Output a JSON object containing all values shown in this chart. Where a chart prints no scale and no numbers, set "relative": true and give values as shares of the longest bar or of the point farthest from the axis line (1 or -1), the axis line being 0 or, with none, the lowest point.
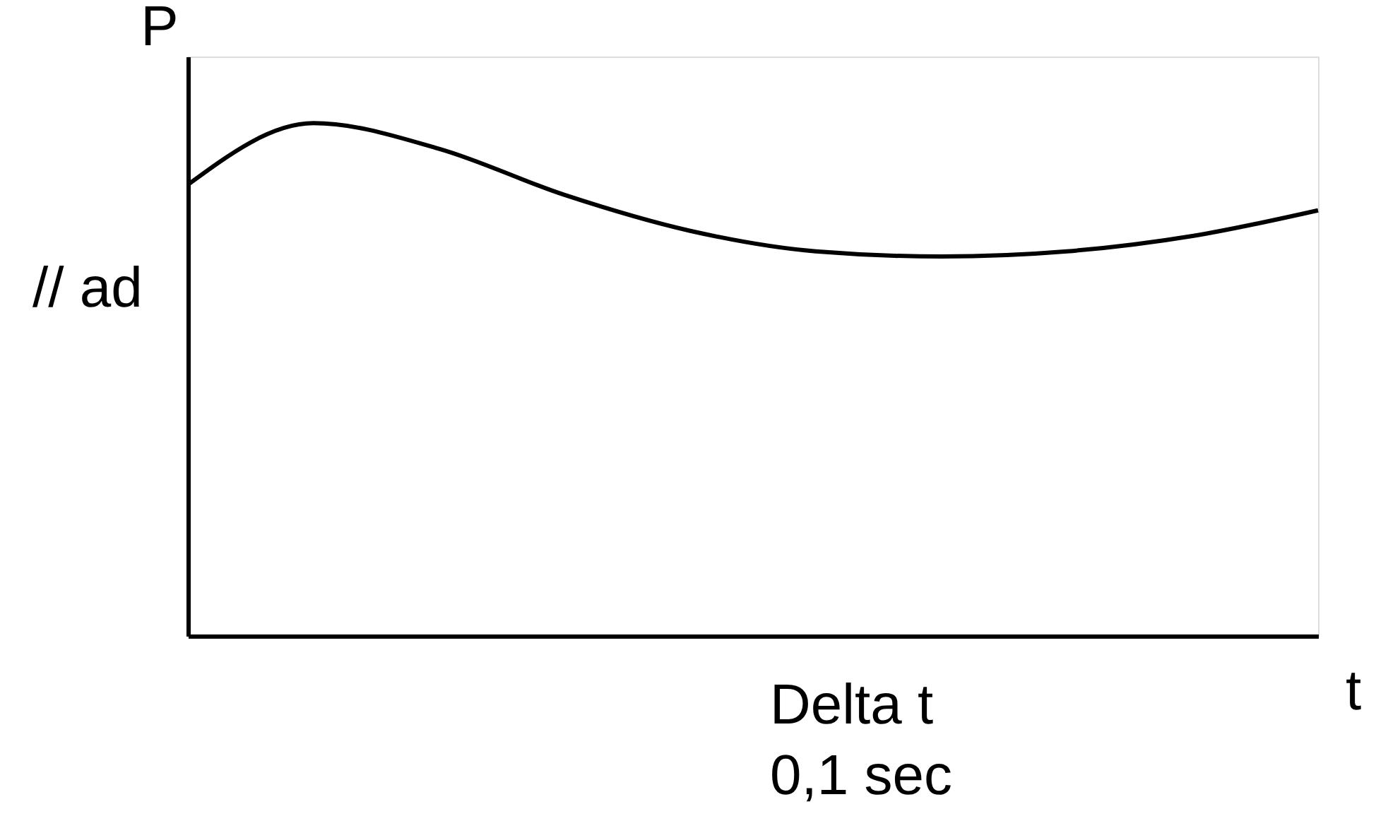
{
  "chart_data": {
    "type": "line",
    "relative": true,
    "ylabel": "P",
    "xlabel": "t",
    "categories": [
      null,
      null,
      null,
      null,
      null,
      null,
      null,
      null,
      null,
      null
    ],
    "series": [
      {
        "color": "#000000",
        "values": [
          0.88,
          1.0,
          0.95,
          0.86,
          0.79,
          0.75,
          0.74,
          0.75,
          0.78,
          0.83
        ]
      }
    ],
    "annotations": [
      "// ad",
      "Delta t",
      "0,1 sec"
    ],
    "grid": false,
    "tick_labels": false,
    "marker": "none",
    "line_style": "solid"
  }
}
